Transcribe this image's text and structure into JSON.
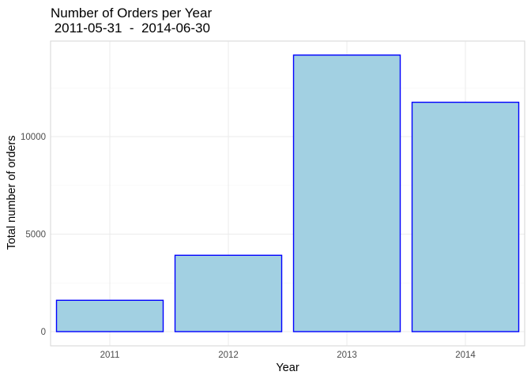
{
  "chart_data": {
    "type": "bar",
    "title": "Number of Orders per Year",
    "subtitle": " 2011-05-31  -  2014-06-30",
    "xlabel": "Year",
    "ylabel": "Total number of orders",
    "categories": [
      "2011",
      "2012",
      "2013",
      "2014"
    ],
    "values": [
      1607,
      3915,
      14182,
      11761
    ],
    "ylim": [
      0,
      14900
    ],
    "yticks": [
      0,
      5000,
      10000
    ],
    "ytick_labels": [
      "0",
      "5000",
      "10000"
    ],
    "grid": true,
    "legend": "none",
    "colors": {
      "bar_fill": "#a2d0e2",
      "bar_stroke": "#0000ff",
      "grid_major": "#ebebeb",
      "grid_minor": "#f5f5f5",
      "panel_border": "#d6d6d6"
    }
  }
}
